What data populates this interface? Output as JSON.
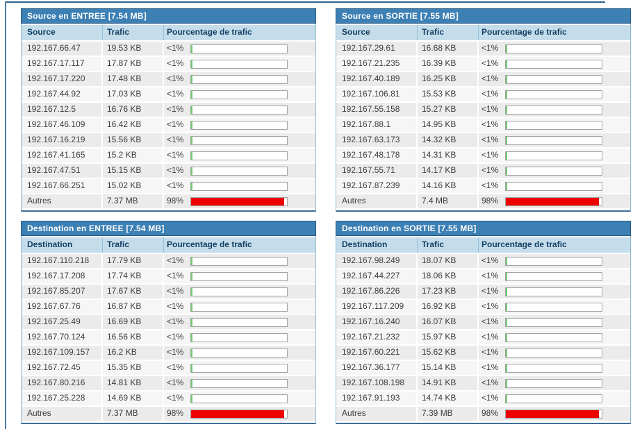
{
  "colors": {
    "title_bar_bg": "#3c80b4",
    "title_bar_border": "#265a84",
    "header_row_bg": "#c5ddeb",
    "header_text": "#123f63",
    "green": "#6dcf6d",
    "red": "#ee0000",
    "frame_blue": "#2d5f8a"
  },
  "tables": [
    {
      "id": "source-entree",
      "title": "Source en ENTREE [7.54 MB]",
      "columns": [
        "Source",
        "Trafic",
        "Pourcentage de trafic"
      ],
      "rows": [
        {
          "name": "192.167.66.47",
          "traffic": "19.53 KB",
          "percent": "<1%",
          "bar_percent": 1,
          "bar_color": "green"
        },
        {
          "name": "192.167.17.117",
          "traffic": "17.87 KB",
          "percent": "<1%",
          "bar_percent": 1,
          "bar_color": "green"
        },
        {
          "name": "192.167.17.220",
          "traffic": "17.48 KB",
          "percent": "<1%",
          "bar_percent": 1,
          "bar_color": "green"
        },
        {
          "name": "192.167.44.92",
          "traffic": "17.03 KB",
          "percent": "<1%",
          "bar_percent": 1,
          "bar_color": "green"
        },
        {
          "name": "192.167.12.5",
          "traffic": "16.76 KB",
          "percent": "<1%",
          "bar_percent": 1,
          "bar_color": "green"
        },
        {
          "name": "192.167.46.109",
          "traffic": "16.42 KB",
          "percent": "<1%",
          "bar_percent": 1,
          "bar_color": "green"
        },
        {
          "name": "192.167.16.219",
          "traffic": "15.56 KB",
          "percent": "<1%",
          "bar_percent": 1,
          "bar_color": "green"
        },
        {
          "name": "192.167.41.165",
          "traffic": "15.2 KB",
          "percent": "<1%",
          "bar_percent": 1,
          "bar_color": "green"
        },
        {
          "name": "192.167.47.51",
          "traffic": "15.15 KB",
          "percent": "<1%",
          "bar_percent": 1,
          "bar_color": "green"
        },
        {
          "name": "192.167.66.251",
          "traffic": "15.02 KB",
          "percent": "<1%",
          "bar_percent": 1,
          "bar_color": "green"
        },
        {
          "name": "Autres",
          "traffic": "7.37 MB",
          "percent": "98%",
          "bar_percent": 97,
          "bar_color": "red"
        }
      ]
    },
    {
      "id": "source-sortie",
      "title": "Source en SORTIE [7.55 MB]",
      "columns": [
        "Source",
        "Trafic",
        "Pourcentage de trafic"
      ],
      "rows": [
        {
          "name": "192.167.29.61",
          "traffic": "16.68 KB",
          "percent": "<1%",
          "bar_percent": 1,
          "bar_color": "green"
        },
        {
          "name": "192.167.21.235",
          "traffic": "16.39 KB",
          "percent": "<1%",
          "bar_percent": 1,
          "bar_color": "green"
        },
        {
          "name": "192.167.40.189",
          "traffic": "16.25 KB",
          "percent": "<1%",
          "bar_percent": 1,
          "bar_color": "green"
        },
        {
          "name": "192.167.106.81",
          "traffic": "15.53 KB",
          "percent": "<1%",
          "bar_percent": 1,
          "bar_color": "green"
        },
        {
          "name": "192.167.55.158",
          "traffic": "15.27 KB",
          "percent": "<1%",
          "bar_percent": 1,
          "bar_color": "green"
        },
        {
          "name": "192.167.88.1",
          "traffic": "14.95 KB",
          "percent": "<1%",
          "bar_percent": 1,
          "bar_color": "green"
        },
        {
          "name": "192.167.63.173",
          "traffic": "14.32 KB",
          "percent": "<1%",
          "bar_percent": 1,
          "bar_color": "green"
        },
        {
          "name": "192.167.48.178",
          "traffic": "14.31 KB",
          "percent": "<1%",
          "bar_percent": 1,
          "bar_color": "green"
        },
        {
          "name": "192.167.55.71",
          "traffic": "14.17 KB",
          "percent": "<1%",
          "bar_percent": 1,
          "bar_color": "green"
        },
        {
          "name": "192.167.87.239",
          "traffic": "14.16 KB",
          "percent": "<1%",
          "bar_percent": 1,
          "bar_color": "green"
        },
        {
          "name": "Autres",
          "traffic": "7.4 MB",
          "percent": "98%",
          "bar_percent": 97,
          "bar_color": "red"
        }
      ]
    },
    {
      "id": "destination-entree",
      "title": "Destination en ENTREE [7.54 MB]",
      "columns": [
        "Destination",
        "Trafic",
        "Pourcentage de trafic"
      ],
      "rows": [
        {
          "name": "192.167.110.218",
          "traffic": "17.79 KB",
          "percent": "<1%",
          "bar_percent": 1,
          "bar_color": "green"
        },
        {
          "name": "192.167.17.208",
          "traffic": "17.74 KB",
          "percent": "<1%",
          "bar_percent": 1,
          "bar_color": "green"
        },
        {
          "name": "192.167.85.207",
          "traffic": "17.67 KB",
          "percent": "<1%",
          "bar_percent": 1,
          "bar_color": "green"
        },
        {
          "name": "192.167.67.76",
          "traffic": "16.87 KB",
          "percent": "<1%",
          "bar_percent": 1,
          "bar_color": "green"
        },
        {
          "name": "192.167.25.49",
          "traffic": "16.69 KB",
          "percent": "<1%",
          "bar_percent": 1,
          "bar_color": "green"
        },
        {
          "name": "192.167.70.124",
          "traffic": "16.56 KB",
          "percent": "<1%",
          "bar_percent": 1,
          "bar_color": "green"
        },
        {
          "name": "192.167.109.157",
          "traffic": "16.2 KB",
          "percent": "<1%",
          "bar_percent": 1,
          "bar_color": "green"
        },
        {
          "name": "192.167.72.45",
          "traffic": "15.35 KB",
          "percent": "<1%",
          "bar_percent": 1,
          "bar_color": "green"
        },
        {
          "name": "192.167.80.216",
          "traffic": "14.81 KB",
          "percent": "<1%",
          "bar_percent": 1,
          "bar_color": "green"
        },
        {
          "name": "192.167.25.228",
          "traffic": "14.69 KB",
          "percent": "<1%",
          "bar_percent": 1,
          "bar_color": "green"
        },
        {
          "name": "Autres",
          "traffic": "7.37 MB",
          "percent": "98%",
          "bar_percent": 97,
          "bar_color": "red"
        }
      ]
    },
    {
      "id": "destination-sortie",
      "title": "Destination en SORTIE [7.55 MB]",
      "columns": [
        "Destination",
        "Trafic",
        "Pourcentage de trafic"
      ],
      "rows": [
        {
          "name": "192.167.98.249",
          "traffic": "18.07 KB",
          "percent": "<1%",
          "bar_percent": 1,
          "bar_color": "green"
        },
        {
          "name": "192.167.44.227",
          "traffic": "18.06 KB",
          "percent": "<1%",
          "bar_percent": 1,
          "bar_color": "green"
        },
        {
          "name": "192.167.86.226",
          "traffic": "17.23 KB",
          "percent": "<1%",
          "bar_percent": 1,
          "bar_color": "green"
        },
        {
          "name": "192.167.117.209",
          "traffic": "16.92 KB",
          "percent": "<1%",
          "bar_percent": 1,
          "bar_color": "green"
        },
        {
          "name": "192.167.16.240",
          "traffic": "16.07 KB",
          "percent": "<1%",
          "bar_percent": 1,
          "bar_color": "green"
        },
        {
          "name": "192.167.21.232",
          "traffic": "15.97 KB",
          "percent": "<1%",
          "bar_percent": 1,
          "bar_color": "green"
        },
        {
          "name": "192.167.60.221",
          "traffic": "15.62 KB",
          "percent": "<1%",
          "bar_percent": 1,
          "bar_color": "green"
        },
        {
          "name": "192.167.36.177",
          "traffic": "15.14 KB",
          "percent": "<1%",
          "bar_percent": 1,
          "bar_color": "green"
        },
        {
          "name": "192.167.108.198",
          "traffic": "14.91 KB",
          "percent": "<1%",
          "bar_percent": 1,
          "bar_color": "green"
        },
        {
          "name": "192.167.91.193",
          "traffic": "14.74 KB",
          "percent": "<1%",
          "bar_percent": 1,
          "bar_color": "green"
        },
        {
          "name": "Autres",
          "traffic": "7.39 MB",
          "percent": "98%",
          "bar_percent": 97,
          "bar_color": "red"
        }
      ]
    }
  ]
}
